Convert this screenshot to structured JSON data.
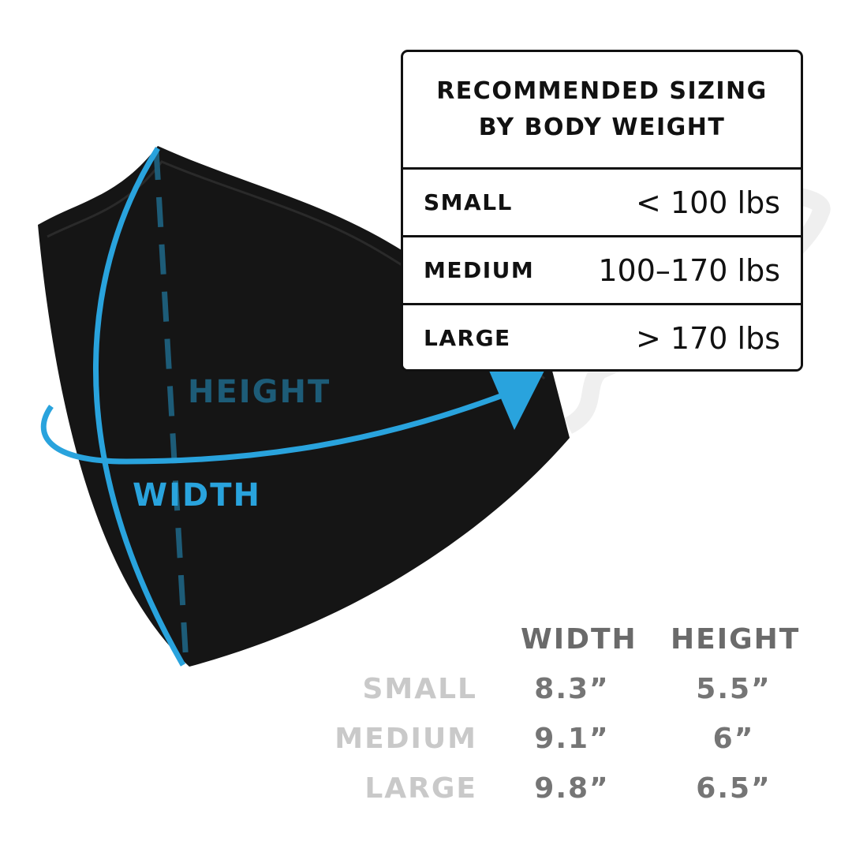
{
  "colors": {
    "accent": "#29a3dd",
    "dashed": "#1d5c78",
    "mask": "#151515"
  },
  "diagram": {
    "height_label": "HEIGHT",
    "width_label": "WIDTH"
  },
  "weight_table": {
    "title_line1": "RECOMMENDED SIZING",
    "title_line2": "BY BODY WEIGHT",
    "rows": [
      {
        "size": "SMALL",
        "weight": "< 100 lbs"
      },
      {
        "size": "MEDIUM",
        "weight": "100–170 lbs"
      },
      {
        "size": "LARGE",
        "weight": "> 170 lbs"
      }
    ]
  },
  "dimensions_table": {
    "headers": [
      "WIDTH",
      "HEIGHT"
    ],
    "rows": [
      {
        "size": "SMALL",
        "width": "8.3”",
        "height": "5.5”"
      },
      {
        "size": "MEDIUM",
        "width": "9.1”",
        "height": "6”"
      },
      {
        "size": "LARGE",
        "width": "9.8”",
        "height": "6.5”"
      }
    ]
  }
}
